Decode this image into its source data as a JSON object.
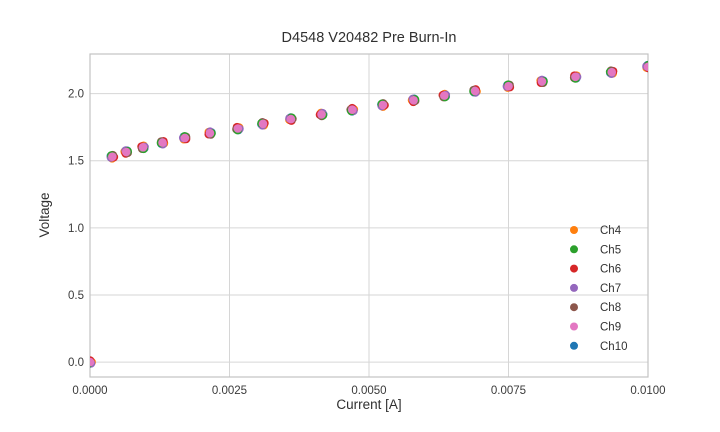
{
  "figure": {
    "background": "#ffffff"
  },
  "colors": {
    "grid": "#d6d6d6",
    "spine": "#c3c3c3",
    "title_text": "#303030",
    "tick_text": "#3a3a3a"
  },
  "chart_data": {
    "type": "scatter",
    "title": "D4548 V20482 Pre Burn-In",
    "xlabel": "Current [A]",
    "ylabel": "Voltage",
    "xlim": [
      0.0,
      0.01
    ],
    "ylim": [
      -0.111,
      2.295
    ],
    "grid": true,
    "legend_position": "lower right",
    "xticks": {
      "values": [
        0.0,
        0.0025,
        0.005,
        0.0075,
        0.01
      ],
      "labels": [
        "0.0000",
        "0.0025",
        "0.0050",
        "0.0075",
        "0.0100"
      ]
    },
    "yticks": {
      "values": [
        0.0,
        0.5,
        1.0,
        1.5,
        2.0
      ],
      "labels": [
        "0.0",
        "0.5",
        "1.0",
        "1.5",
        "2.0"
      ]
    },
    "x": [
      0.0,
      0.0004,
      0.00065,
      0.00095,
      0.0013,
      0.0017,
      0.00215,
      0.00265,
      0.0031,
      0.0036,
      0.00415,
      0.0047,
      0.00525,
      0.0058,
      0.00635,
      0.0069,
      0.0075,
      0.0081,
      0.0087,
      0.00935,
      0.01
    ],
    "series": [
      {
        "name": "Ch4",
        "color": "#ff7f0e",
        "y": [
          0.0,
          1.53,
          1.565,
          1.6,
          1.635,
          1.67,
          1.705,
          1.74,
          1.775,
          1.81,
          1.845,
          1.88,
          1.915,
          1.95,
          1.985,
          2.02,
          2.055,
          2.09,
          2.125,
          2.16,
          2.2
        ]
      },
      {
        "name": "Ch5",
        "color": "#2ca02c",
        "y": [
          0.0,
          1.53,
          1.565,
          1.6,
          1.635,
          1.67,
          1.705,
          1.74,
          1.775,
          1.81,
          1.845,
          1.88,
          1.915,
          1.95,
          1.985,
          2.02,
          2.055,
          2.09,
          2.125,
          2.16,
          2.2
        ]
      },
      {
        "name": "Ch6",
        "color": "#d62728",
        "y": [
          0.0,
          1.53,
          1.565,
          1.6,
          1.635,
          1.67,
          1.705,
          1.74,
          1.775,
          1.81,
          1.845,
          1.88,
          1.915,
          1.95,
          1.985,
          2.02,
          2.055,
          2.09,
          2.125,
          2.16,
          2.2
        ]
      },
      {
        "name": "Ch7",
        "color": "#9467bd",
        "y": [
          0.0,
          1.53,
          1.565,
          1.6,
          1.635,
          1.67,
          1.705,
          1.74,
          1.775,
          1.81,
          1.845,
          1.88,
          1.915,
          1.95,
          1.985,
          2.02,
          2.055,
          2.09,
          2.125,
          2.16,
          2.2
        ]
      },
      {
        "name": "Ch8",
        "color": "#8c564b",
        "y": [
          0.0,
          1.53,
          1.565,
          1.6,
          1.635,
          1.67,
          1.705,
          1.74,
          1.775,
          1.81,
          1.845,
          1.88,
          1.915,
          1.95,
          1.985,
          2.02,
          2.055,
          2.09,
          2.125,
          2.16,
          2.2
        ]
      },
      {
        "name": "Ch9",
        "color": "#e377c2",
        "y": [
          0.0,
          1.53,
          1.565,
          1.6,
          1.635,
          1.67,
          1.705,
          1.74,
          1.775,
          1.81,
          1.845,
          1.88,
          1.915,
          1.95,
          1.985,
          2.02,
          2.055,
          2.09,
          2.125,
          2.16,
          2.2
        ]
      },
      {
        "name": "Ch10",
        "color": "#1f77b4",
        "y": [
          0.0,
          1.53,
          1.565,
          1.6,
          1.635,
          1.67,
          1.705,
          1.74,
          1.775,
          1.81,
          1.845,
          1.88,
          1.915,
          1.95,
          1.985,
          2.02,
          2.055,
          2.09,
          2.125,
          2.16,
          2.2
        ]
      }
    ]
  }
}
